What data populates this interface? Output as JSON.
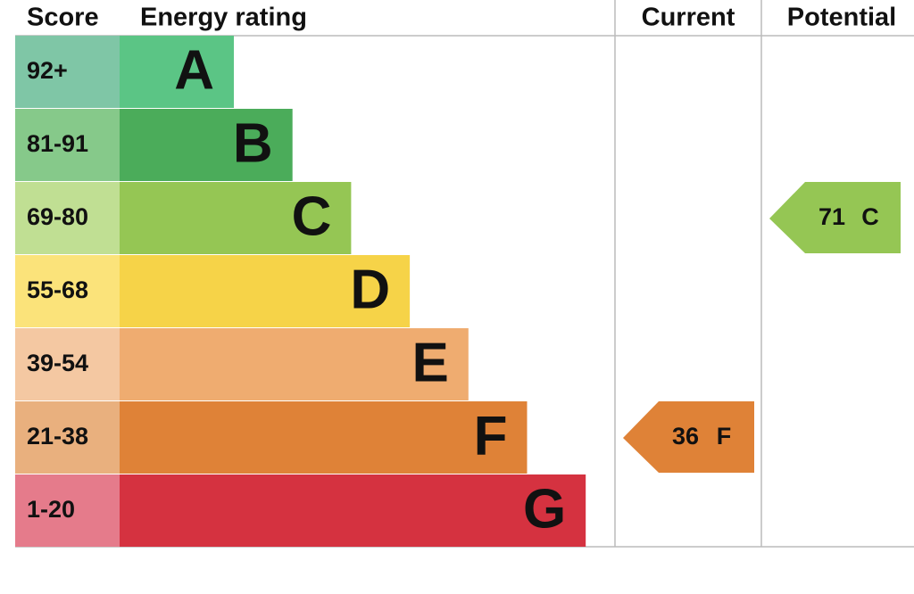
{
  "headers": {
    "score": "Score",
    "rating": "Energy rating",
    "current": "Current",
    "potential": "Potential"
  },
  "bands": [
    {
      "score": "92+",
      "letter": "A",
      "color": "#5bc585",
      "score_color": "#7fc6a6"
    },
    {
      "score": "81-91",
      "letter": "B",
      "color": "#4bac5a",
      "score_color": "#86c98a"
    },
    {
      "score": "69-80",
      "letter": "C",
      "color": "#95c654",
      "score_color": "#c0df93"
    },
    {
      "score": "55-68",
      "letter": "D",
      "color": "#f6d348",
      "score_color": "#fbe37a"
    },
    {
      "score": "39-54",
      "letter": "E",
      "color": "#efac70",
      "score_color": "#f4c8a2"
    },
    {
      "score": "21-38",
      "letter": "F",
      "color": "#df8237",
      "score_color": "#e9b07e"
    },
    {
      "score": "1-20",
      "letter": "G",
      "color": "#d53240",
      "score_color": "#e57b8b"
    }
  ],
  "current": {
    "value": 36,
    "letter": "F"
  },
  "potential": {
    "value": 71,
    "letter": "C"
  }
}
